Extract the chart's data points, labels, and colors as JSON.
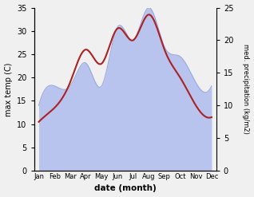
{
  "months": [
    "Jan",
    "Feb",
    "Mar",
    "Apr",
    "May",
    "Jun",
    "Jul",
    "Aug",
    "Sep",
    "Oct",
    "Nov",
    "Dec"
  ],
  "month_x": [
    0,
    1,
    2,
    3,
    4,
    5,
    6,
    7,
    8,
    9,
    10,
    11
  ],
  "temperature": [
    10.5,
    13.5,
    19.0,
    26.0,
    23.0,
    30.5,
    28.0,
    33.5,
    26.0,
    20.0,
    14.0,
    11.5
  ],
  "precipitation": [
    10.0,
    13.0,
    13.0,
    16.5,
    13.0,
    22.0,
    20.0,
    25.0,
    19.0,
    17.5,
    13.5,
    13.0
  ],
  "temp_color": "#aa2222",
  "precip_fill_color": "#b8c4ee",
  "precip_line_color": "#9aa8dd",
  "background_color": "#f0f0f0",
  "xlabel": "date (month)",
  "ylabel_left": "max temp (C)",
  "ylabel_right": "med. precipitation (kg/m2)",
  "ylim_left": [
    0,
    35
  ],
  "ylim_right": [
    0,
    25
  ],
  "yticks_left": [
    0,
    5,
    10,
    15,
    20,
    25,
    30,
    35
  ],
  "yticks_right": [
    0,
    5,
    10,
    15,
    20,
    25
  ],
  "line_width": 1.5,
  "fill_alpha": 1.0
}
